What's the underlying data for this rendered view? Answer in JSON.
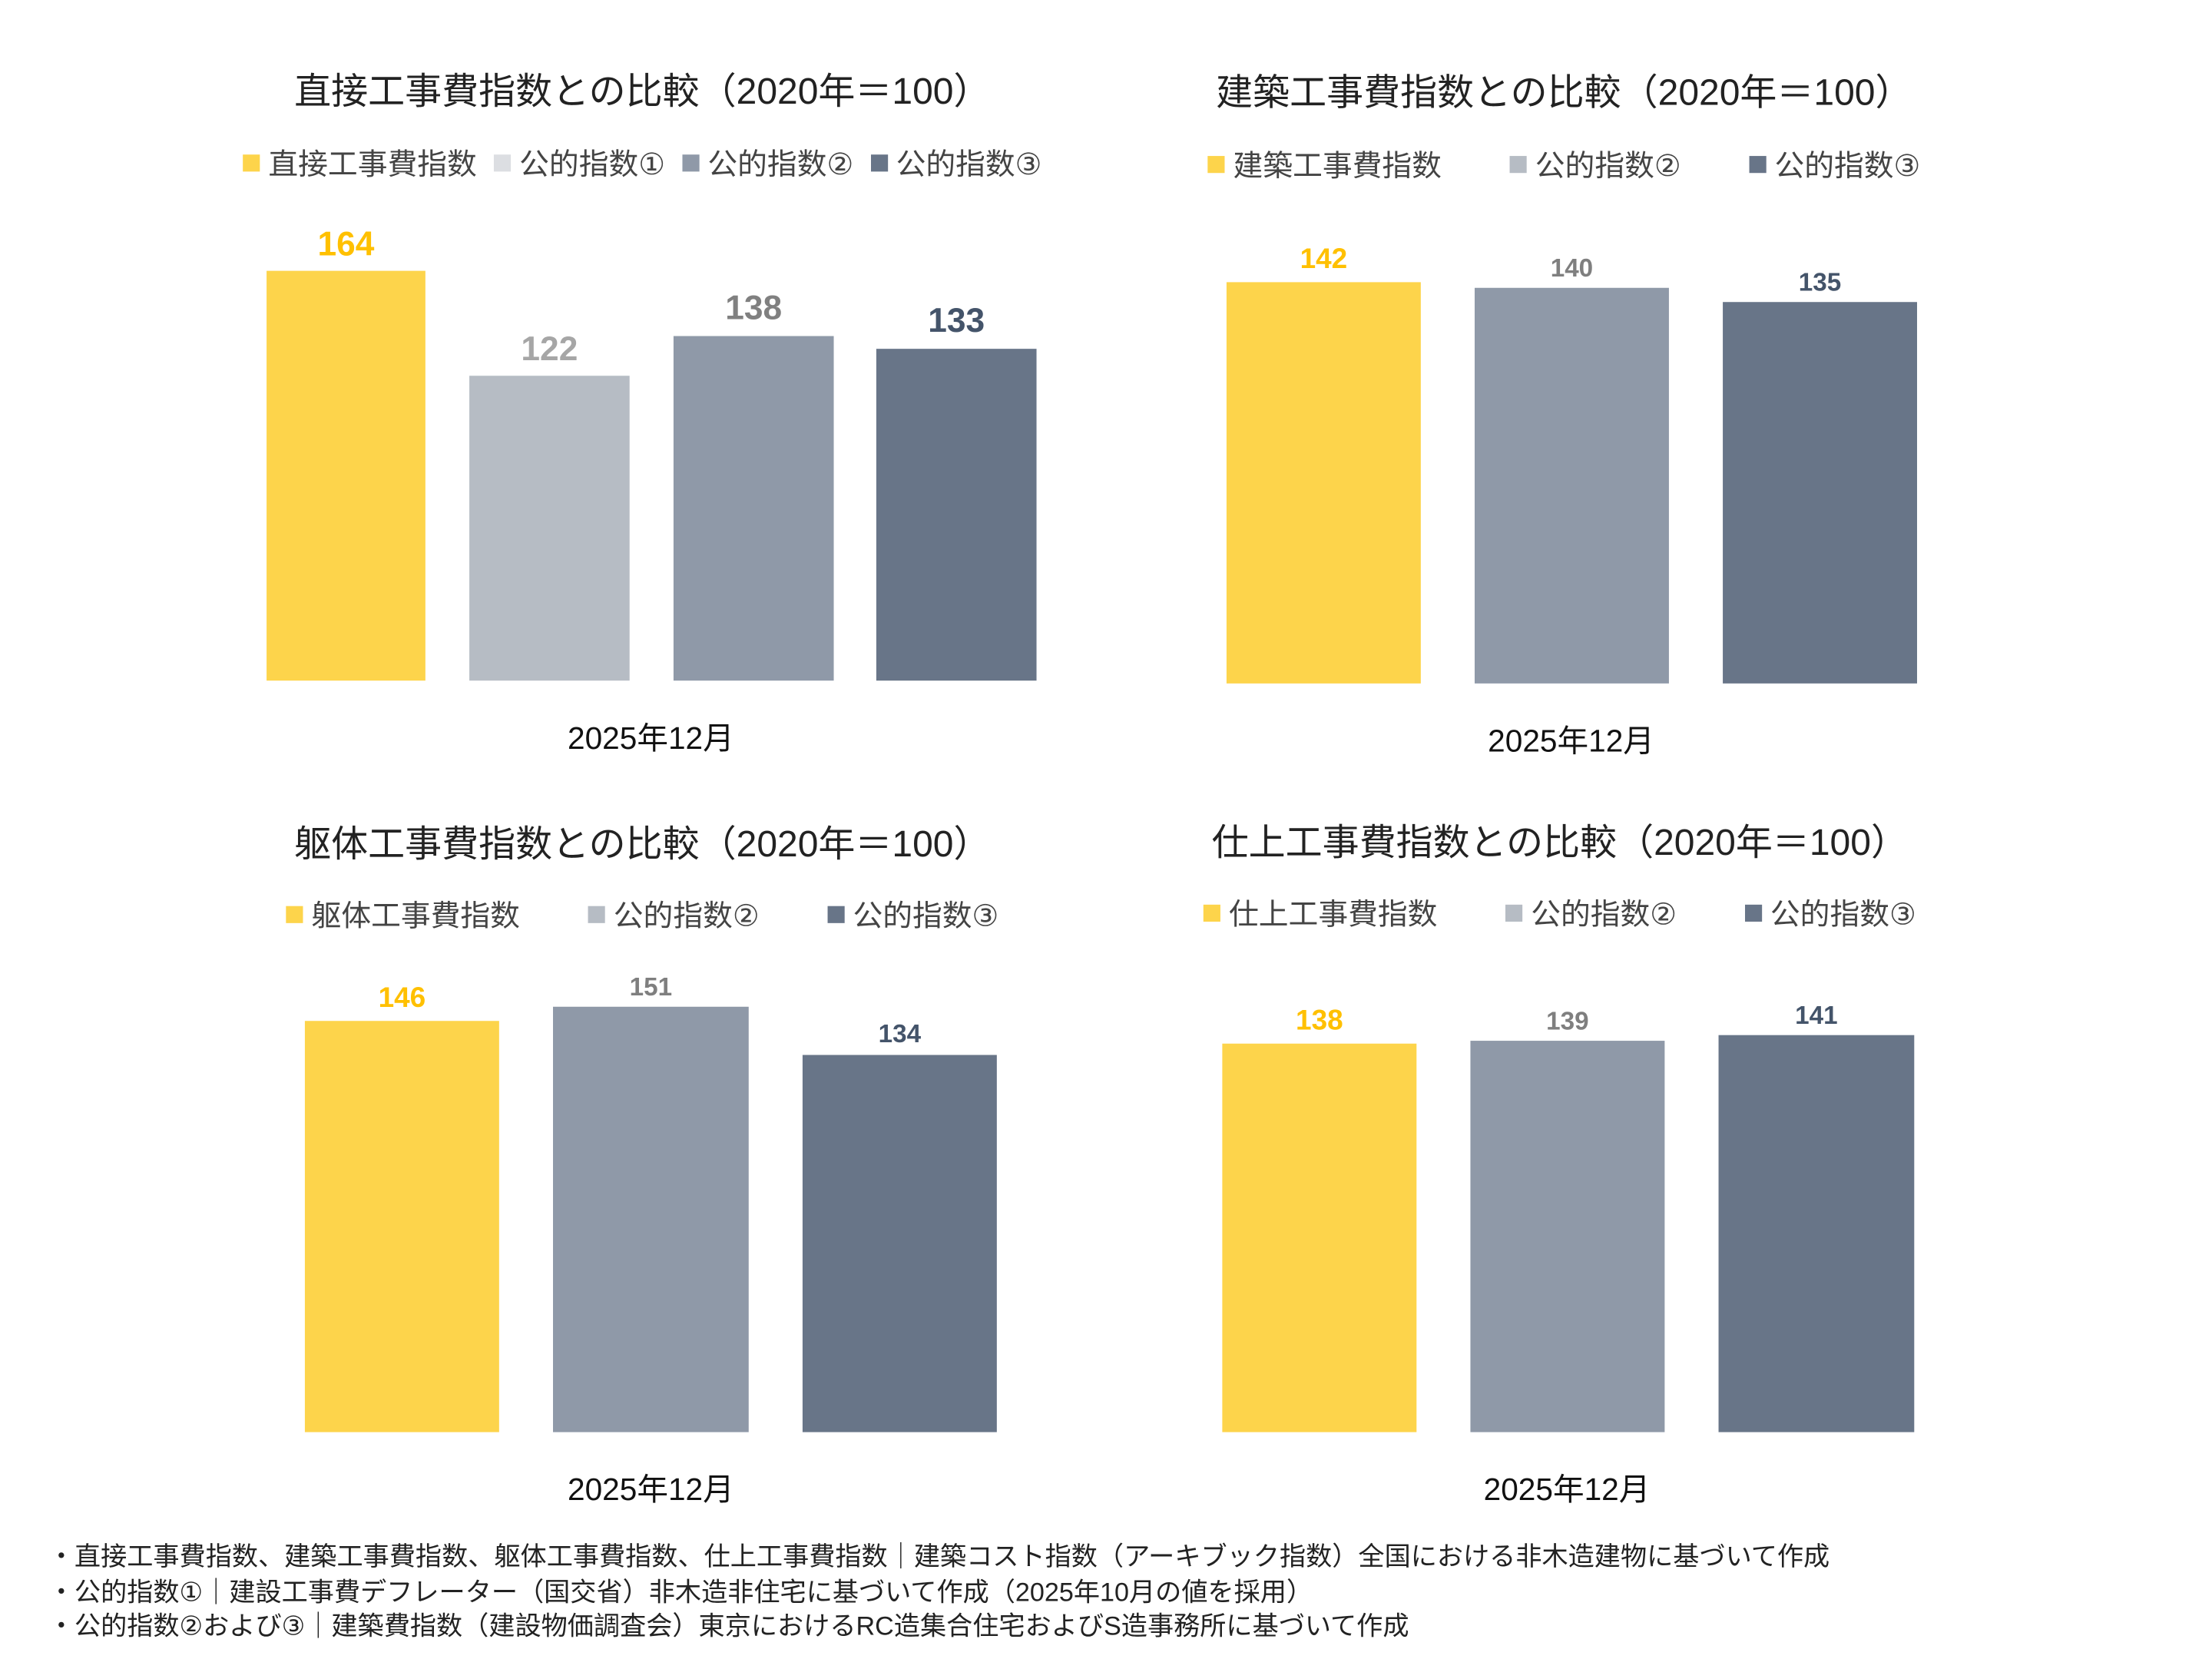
{
  "chart_data": [
    {
      "type": "bar",
      "title": "直接工事費指数との比較（2020年＝100）",
      "categories": [
        "2025年12月"
      ],
      "series": [
        {
          "name": "直接工事費指数",
          "values": [
            164
          ],
          "color": "#FDD44B",
          "legend_color": "#FDD44B",
          "label_color": "#FFC000"
        },
        {
          "name": "公的指数①",
          "values": [
            122
          ],
          "color": "#B6BCC4",
          "legend_color": "#DCDEE2",
          "label_color": "#A6A6A6"
        },
        {
          "name": "公的指数②",
          "values": [
            138
          ],
          "color": "#8F99A8",
          "legend_color": "#8F99A8",
          "label_color": "#808080"
        },
        {
          "name": "公的指数③",
          "values": [
            133
          ],
          "color": "#687588",
          "legend_color": "#687588",
          "label_color": "#44546A"
        }
      ],
      "legend": "top",
      "grid": false,
      "ylim": [
        0,
        170
      ]
    },
    {
      "type": "bar",
      "title": "建築工事費指数との比較（2020年＝100）",
      "categories": [
        "2025年12月"
      ],
      "series": [
        {
          "name": "建築工事費指数",
          "values": [
            142
          ],
          "color": "#FDD44B",
          "legend_color": "#FDD44B",
          "label_color": "#FFC000"
        },
        {
          "name": "公的指数②",
          "values": [
            140
          ],
          "color": "#8F99A8",
          "legend_color": "#B6BCC4",
          "label_color": "#7F7F7F"
        },
        {
          "name": "公的指数③",
          "values": [
            135
          ],
          "color": "#687588",
          "legend_color": "#687588",
          "label_color": "#44546A"
        }
      ],
      "legend": "top",
      "grid": false,
      "ylim": [
        0,
        160
      ]
    },
    {
      "type": "bar",
      "title": "躯体工事費指数との比較（2020年＝100）",
      "categories": [
        "2025年12月"
      ],
      "series": [
        {
          "name": "躯体工事費指数",
          "values": [
            146
          ],
          "color": "#FDD44B",
          "legend_color": "#FDD44B",
          "label_color": "#FFC000"
        },
        {
          "name": "公的指数②",
          "values": [
            151
          ],
          "color": "#8F99A8",
          "legend_color": "#B6BCC4",
          "label_color": "#7F7F7F"
        },
        {
          "name": "公的指数③",
          "values": [
            134
          ],
          "color": "#687588",
          "legend_color": "#687588",
          "label_color": "#44546A"
        }
      ],
      "legend": "top",
      "grid": false,
      "ylim": [
        0,
        160
      ]
    },
    {
      "type": "bar",
      "title": "仕上工事費指数との比較（2020年＝100）",
      "categories": [
        "2025年12月"
      ],
      "series": [
        {
          "name": "仕上工事費指数",
          "values": [
            138
          ],
          "color": "#FDD44B",
          "legend_color": "#FDD44B",
          "label_color": "#FFC000"
        },
        {
          "name": "公的指数②",
          "values": [
            139
          ],
          "color": "#8F99A8",
          "legend_color": "#B6BCC4",
          "label_color": "#7F7F7F"
        },
        {
          "name": "公的指数③",
          "values": [
            141
          ],
          "color": "#687588",
          "legend_color": "#687588",
          "label_color": "#44546A"
        }
      ],
      "legend": "top",
      "grid": false,
      "ylim": [
        0,
        160
      ]
    }
  ],
  "notes": [
    "・直接工事費指数、建築工事費指数、躯体工事費指数、仕上工事費指数｜建築コスト指数（アーキブック指数）全国における非木造建物に基づいて作成",
    "・公的指数①｜建設工事費デフレーター（国交省）非木造非住宅に基づいて作成（2025年10月の値を採用）",
    "・公的指数②および③｜建築費指数（建設物価調査会）東京におけるRC造集合住宅およびS造事務所に基づいて作成"
  ]
}
